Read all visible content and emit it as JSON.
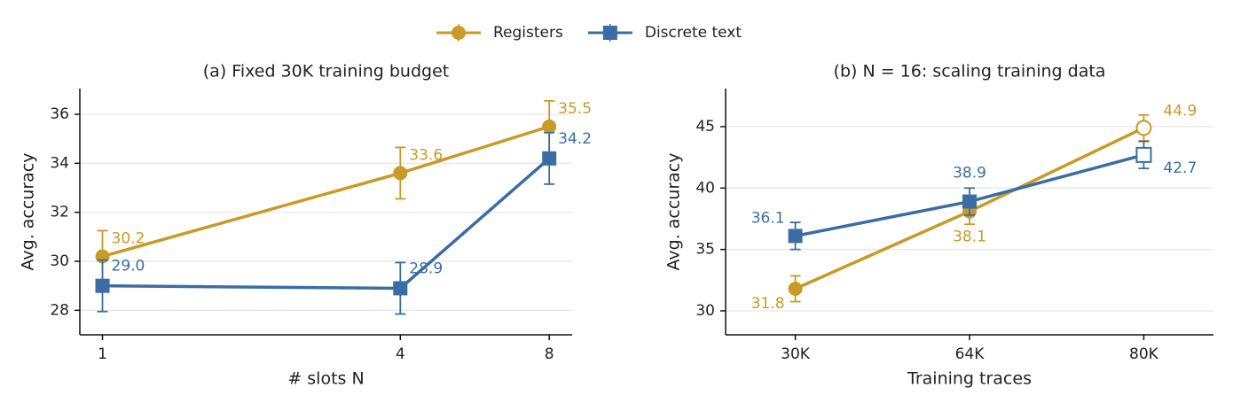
{
  "chart_data": [
    {
      "type": "line",
      "title": "(a) Fixed 30K training budget",
      "xlabel": "# slots N",
      "ylabel": "Avg. accuracy",
      "xscale": "log2",
      "x": [
        1,
        4,
        8
      ],
      "xlim": [
        0.9,
        8.9
      ],
      "xticks": [
        1,
        4,
        8
      ],
      "ylim": [
        27,
        37.05
      ],
      "yticks": [
        28,
        30,
        32,
        34,
        36
      ],
      "grid": true,
      "series": [
        {
          "name": "Registers",
          "color": "#c99a25",
          "marker": "circle",
          "values": [
            30.2,
            33.6,
            35.5
          ],
          "errors": [
            1.05,
            1.05,
            1.05
          ],
          "value_labels": [
            "30.2",
            "33.6",
            "35.5"
          ]
        },
        {
          "name": "Discrete text",
          "color": "#3b6da4",
          "marker": "square",
          "values": [
            29.0,
            28.9,
            34.2
          ],
          "errors": [
            1.05,
            1.05,
            1.05
          ],
          "value_labels": [
            "29.0",
            "28.9",
            "34.2"
          ]
        }
      ]
    },
    {
      "type": "line",
      "title": "(b) N = 16: scaling training data",
      "xlabel": "Training traces",
      "ylabel": "Avg. accuracy",
      "categories": [
        "30K",
        "64K",
        "80K"
      ],
      "hollow_index": 2,
      "ylim": [
        28.05,
        48.1
      ],
      "yticks": [
        30,
        35,
        40,
        45
      ],
      "grid": true,
      "series": [
        {
          "color": "#c99a25",
          "marker": "circle",
          "values": [
            31.8,
            38.1,
            44.9
          ],
          "errors": [
            1.05,
            1.05,
            1.05
          ],
          "value_labels": [
            "31.8",
            "38.1",
            "44.9"
          ]
        },
        {
          "color": "#3b6da4",
          "marker": "square",
          "values": [
            36.1,
            38.9,
            42.7
          ],
          "errors": [
            1.1,
            1.1,
            1.1
          ],
          "value_labels": [
            "36.1",
            "38.9",
            "42.7"
          ]
        }
      ]
    }
  ]
}
